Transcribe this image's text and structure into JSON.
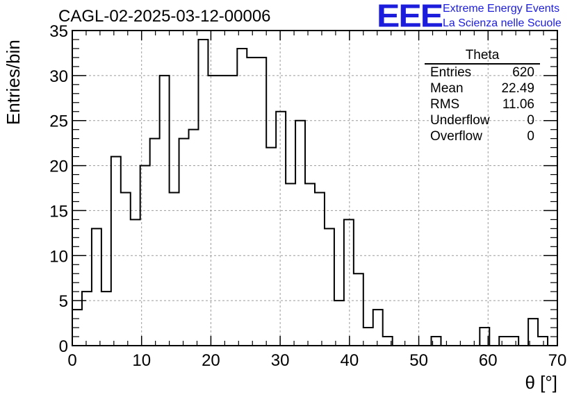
{
  "header": {
    "run_title": "CAGL-02-2025-03-12-00006",
    "logo_letters": "EEE",
    "logo_line1": "Extreme Energy Events",
    "logo_line2": "La Scienza nelle Scuole"
  },
  "stats_box": {
    "title": "Theta",
    "rows": [
      {
        "label": "Entries",
        "value": "620"
      },
      {
        "label": "Mean",
        "value": "22.49"
      },
      {
        "label": "RMS",
        "value": "11.06"
      },
      {
        "label": "Underflow",
        "value": "0"
      },
      {
        "label": "Overflow",
        "value": "0"
      }
    ]
  },
  "chart_data": {
    "type": "bar",
    "style": "step-histogram",
    "xlabel": "θ [°]",
    "ylabel": "Entries/bin",
    "xlim": [
      0,
      70
    ],
    "ylim": [
      0,
      35
    ],
    "x_ticks": [
      "0",
      "10",
      "20",
      "30",
      "40",
      "50",
      "60",
      "70"
    ],
    "y_ticks": [
      "0",
      "5",
      "10",
      "15",
      "20",
      "25",
      "30",
      "35"
    ],
    "grid": true,
    "line_color": "#000000",
    "bin_width": 1.4,
    "bin_edges_start": 0,
    "values": [
      4,
      6,
      13,
      6,
      21,
      17,
      14,
      20,
      23,
      30,
      17,
      23,
      24,
      34,
      30,
      30,
      30,
      33,
      32,
      32,
      22,
      26,
      18,
      25,
      18,
      17,
      13,
      5,
      14,
      8,
      2,
      4,
      1,
      0,
      0,
      0,
      0,
      1,
      0,
      0,
      0,
      0,
      2,
      0,
      1,
      1,
      0,
      3,
      1,
      0
    ]
  }
}
